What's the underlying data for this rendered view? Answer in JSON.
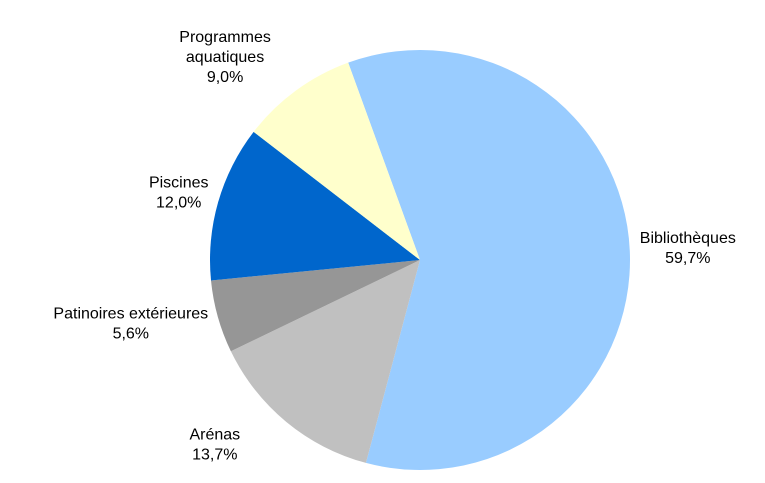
{
  "chart_data": {
    "type": "pie",
    "categories": [
      "Bibliothèques",
      "Arénas",
      "Patinoires extérieures",
      "Piscines",
      "Programmes aquatiques"
    ],
    "values": [
      59.7,
      13.7,
      5.6,
      12.0,
      9.0
    ],
    "value_labels": [
      "59,7%",
      "13,7%",
      "5,6%",
      "12,0%",
      "9,0%"
    ],
    "colors": [
      "#99ccff",
      "#c0c0c0",
      "#969696",
      "#0066cc",
      "#ffffcc"
    ]
  }
}
